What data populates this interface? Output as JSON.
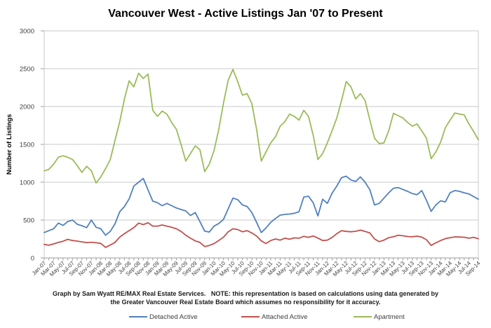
{
  "title": "Vancouver West - Active Listings Jan '07 to Present",
  "footnote": {
    "line1": "Graph by Sam Wyatt RE/MAX Real Estate Services.   NOTE: this representation is based on calculations using data generated by",
    "line2": "the Greater Vancouver Real Estate Board which assumes no responsibility for it accuracy."
  },
  "colors": {
    "detached": "#4F81BD",
    "attached": "#C0504D",
    "apartment": "#9BBB59",
    "gridline": "#C9C9C9",
    "axis": "#9E9E9E",
    "tick_text": "#404040"
  },
  "chart_data": {
    "type": "line",
    "title": "Vancouver West - Active Listings Jan '07 to Present",
    "xlabel": "",
    "ylabel": "Number of Listings",
    "ylim": [
      0,
      3000
    ],
    "ytick_step": 500,
    "grid": "horizontal",
    "legend_position": "bottom",
    "x_frequency": "monthly, Jan-2007 to Sep-2014 (93 points); tick labels shown every 2nd month",
    "x_tick_labels": [
      "Jan-07",
      "Mar-07",
      "May-07",
      "Jul-07",
      "Sep-07",
      "Nov-07",
      "Jan-08",
      "Mar-08",
      "May-08",
      "Jul-08",
      "Sep-08",
      "Nov-08",
      "Jan-09",
      "Mar-09",
      "May-09",
      "Jul-09",
      "Sep-09",
      "Nov-09",
      "Jan-10",
      "Mar-10",
      "May-10",
      "Jul-10",
      "Sep-10",
      "Nov-10",
      "Jan-11",
      "Mar-11",
      "May-11",
      "Jul-11",
      "Sep-11",
      "Nov-11",
      "Jan-12",
      "Mar-12",
      "May-12",
      "Jul-12",
      "Sep-12",
      "Nov-12",
      "Jan-13",
      "Mar-13",
      "May-13",
      "Jul-13",
      "Sep-13",
      "Nov-13",
      "Jan-14",
      "Mar-14",
      "May-14",
      "Jul-14",
      "Sep-14"
    ],
    "series": [
      {
        "name": "Detached Active",
        "color": "#4F81BD",
        "values": [
          335,
          360,
          385,
          460,
          430,
          480,
          500,
          445,
          425,
          400,
          500,
          405,
          385,
          300,
          350,
          450,
          610,
          680,
          780,
          950,
          1000,
          1050,
          900,
          750,
          730,
          690,
          720,
          690,
          660,
          640,
          620,
          560,
          600,
          480,
          355,
          342,
          420,
          455,
          510,
          650,
          790,
          770,
          700,
          680,
          600,
          470,
          335,
          395,
          470,
          520,
          565,
          575,
          580,
          590,
          610,
          805,
          815,
          730,
          555,
          775,
          720,
          855,
          950,
          1060,
          1080,
          1030,
          1010,
          1070,
          1000,
          900,
          700,
          720,
          790,
          860,
          920,
          930,
          905,
          880,
          850,
          835,
          890,
          760,
          615,
          700,
          755,
          740,
          860,
          890,
          880,
          860,
          845,
          810,
          775
        ]
      },
      {
        "name": "Attached Active",
        "color": "#C0504D",
        "values": [
          178,
          168,
          185,
          205,
          220,
          245,
          230,
          222,
          212,
          203,
          207,
          200,
          192,
          140,
          170,
          205,
          275,
          320,
          360,
          400,
          460,
          440,
          465,
          420,
          420,
          435,
          420,
          405,
          385,
          350,
          300,
          260,
          225,
          205,
          150,
          165,
          190,
          230,
          275,
          345,
          385,
          375,
          345,
          360,
          330,
          290,
          225,
          190,
          230,
          250,
          235,
          260,
          248,
          265,
          260,
          285,
          272,
          290,
          262,
          230,
          235,
          270,
          320,
          360,
          350,
          345,
          352,
          368,
          350,
          330,
          250,
          215,
          235,
          268,
          280,
          300,
          293,
          282,
          280,
          287,
          275,
          240,
          165,
          200,
          230,
          255,
          268,
          278,
          276,
          273,
          260,
          272,
          253
        ]
      },
      {
        "name": "Apartment",
        "color": "#9BBB59",
        "values": [
          1150,
          1170,
          1240,
          1330,
          1350,
          1330,
          1300,
          1220,
          1130,
          1210,
          1150,
          990,
          1070,
          1180,
          1300,
          1550,
          1800,
          2100,
          2340,
          2260,
          2440,
          2370,
          2430,
          1950,
          1870,
          1940,
          1900,
          1790,
          1700,
          1500,
          1280,
          1380,
          1480,
          1430,
          1140,
          1240,
          1420,
          1700,
          2050,
          2350,
          2490,
          2330,
          2150,
          2170,
          2040,
          1700,
          1280,
          1400,
          1520,
          1600,
          1740,
          1800,
          1900,
          1870,
          1820,
          1950,
          1870,
          1620,
          1300,
          1380,
          1520,
          1680,
          1850,
          2080,
          2330,
          2260,
          2100,
          2170,
          2080,
          1820,
          1580,
          1510,
          1520,
          1680,
          1910,
          1880,
          1850,
          1790,
          1740,
          1770,
          1680,
          1580,
          1310,
          1400,
          1530,
          1720,
          1820,
          1915,
          1900,
          1890,
          1770,
          1670,
          1560
        ]
      }
    ]
  }
}
